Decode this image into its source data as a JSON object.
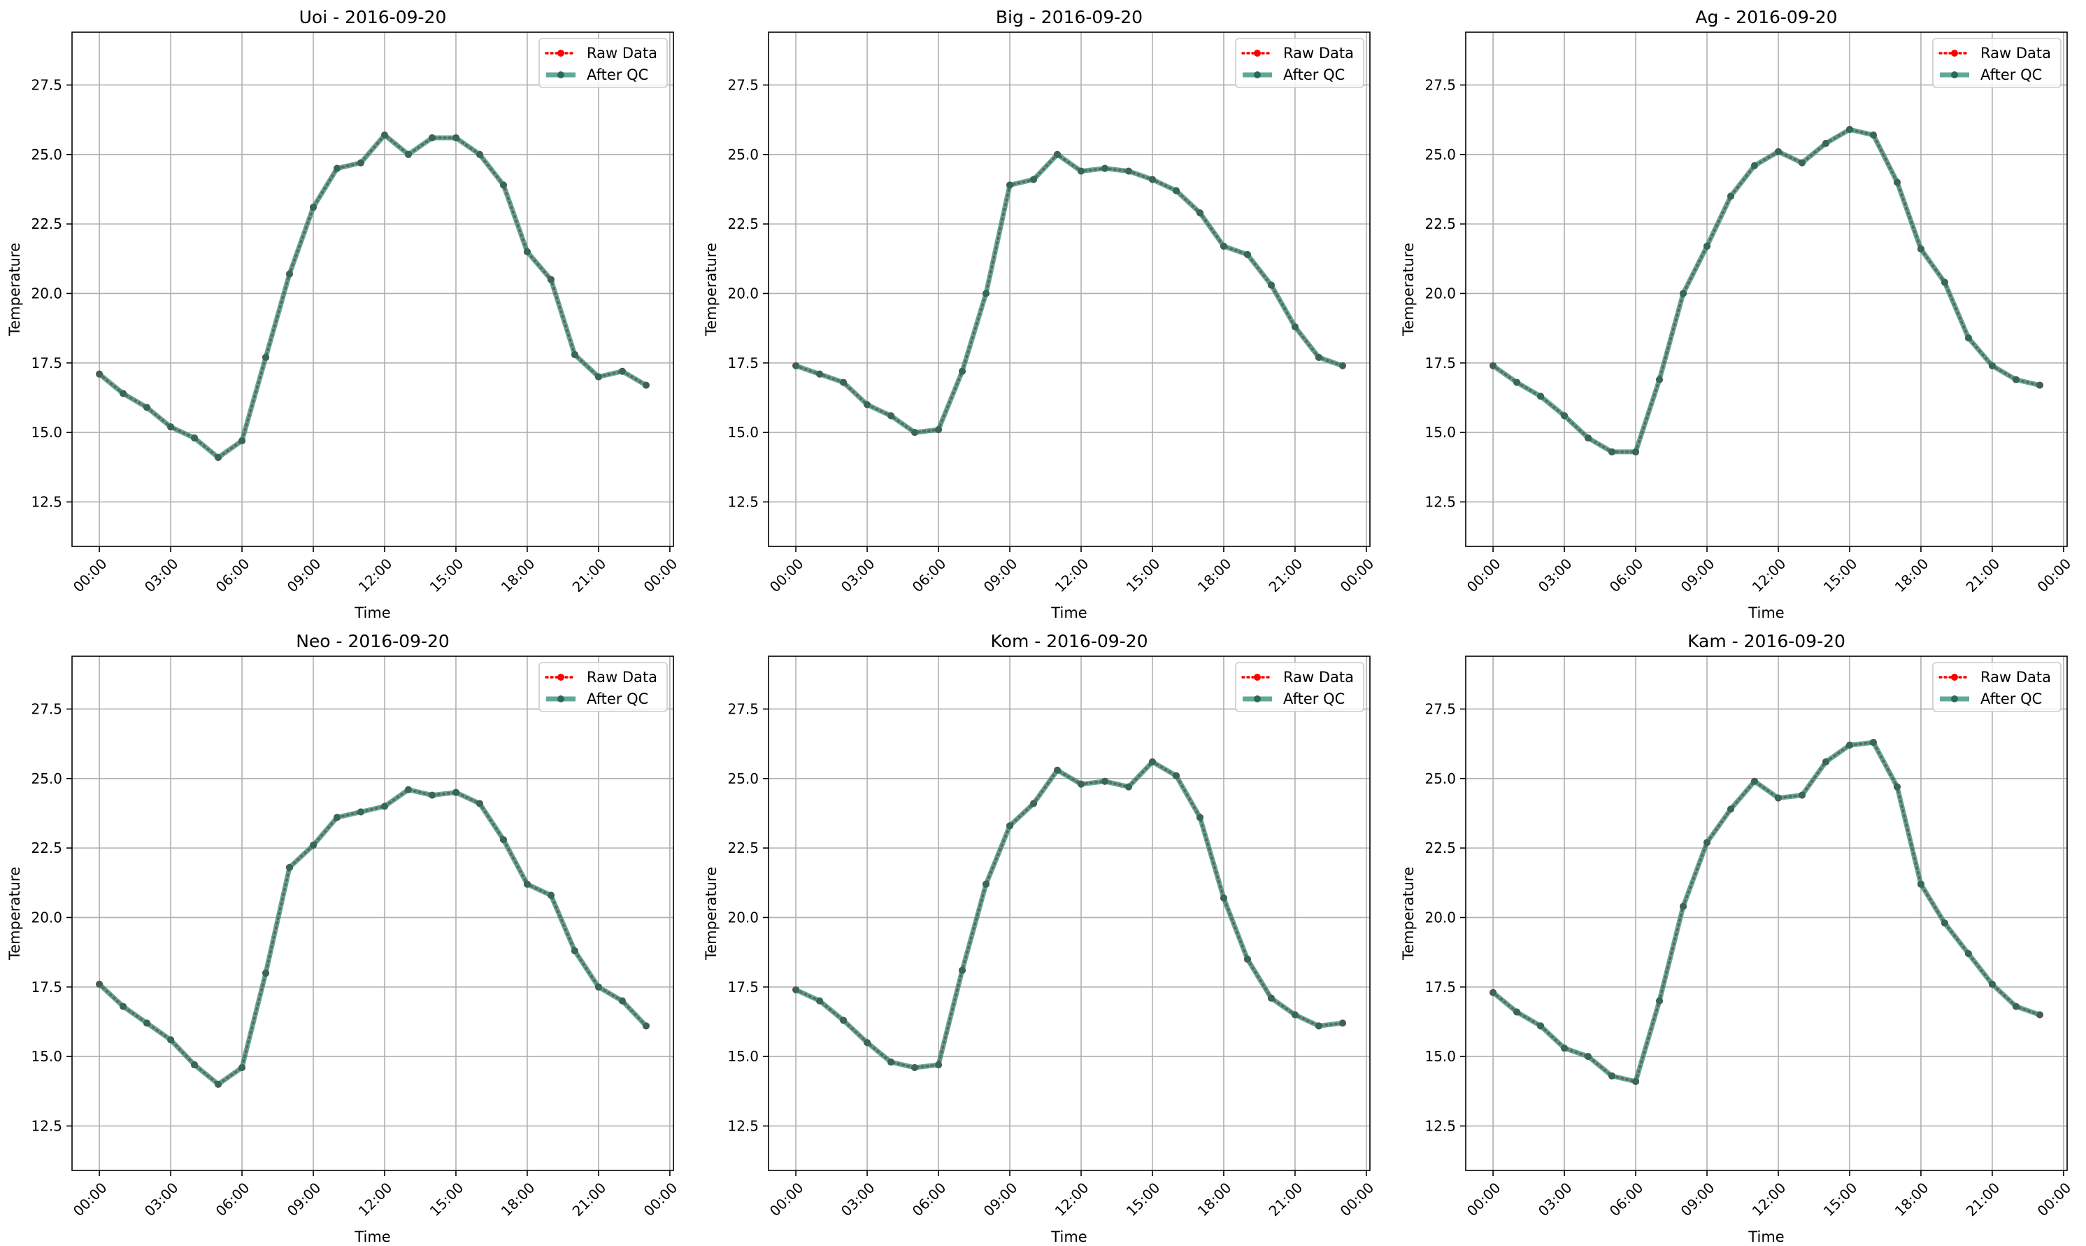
{
  "chart_data": [
    {
      "type": "line",
      "title": "Uoi - 2016-09-20",
      "xlabel": "Time",
      "ylabel": "Temperature",
      "xlim": [
        -1.15,
        24.15
      ],
      "ylim": [
        10.9,
        29.4
      ],
      "x_ticks": [
        0,
        3,
        6,
        9,
        12,
        15,
        18,
        21,
        24
      ],
      "x_tick_labels": [
        "00:00",
        "03:00",
        "06:00",
        "09:00",
        "12:00",
        "15:00",
        "18:00",
        "21:00",
        "00:00"
      ],
      "y_ticks": [
        12.5,
        15.0,
        17.5,
        20.0,
        22.5,
        25.0,
        27.5
      ],
      "y_tick_labels": [
        "12.5",
        "15.0",
        "17.5",
        "20.0",
        "22.5",
        "25.0",
        "27.5"
      ],
      "grid": true,
      "legend_position": "top-right",
      "x": [
        0,
        1,
        2,
        3,
        4,
        5,
        6,
        7,
        8,
        9,
        10,
        11,
        12,
        13,
        14,
        15,
        16,
        17,
        18,
        19,
        20,
        21,
        22,
        23
      ],
      "series": [
        {
          "name": "Raw Data",
          "color": "#ff0000",
          "style": "dotted",
          "values": [
            17.1,
            16.4,
            15.9,
            15.2,
            14.8,
            14.1,
            14.7,
            17.7,
            20.7,
            23.1,
            24.5,
            24.7,
            25.7,
            25.0,
            25.6,
            25.6,
            25.0,
            23.9,
            21.5,
            20.5,
            17.8,
            17.0,
            17.2,
            16.7
          ]
        },
        {
          "name": "After QC",
          "color": "#2e8b74",
          "style": "solid",
          "values": [
            17.1,
            16.4,
            15.9,
            15.2,
            14.8,
            14.1,
            14.7,
            17.7,
            20.7,
            23.1,
            24.5,
            24.7,
            25.7,
            25.0,
            25.6,
            25.6,
            25.0,
            23.9,
            21.5,
            20.5,
            17.8,
            17.0,
            17.2,
            16.7
          ]
        }
      ]
    },
    {
      "type": "line",
      "title": "Big - 2016-09-20",
      "xlabel": "Time",
      "ylabel": "Temperature",
      "xlim": [
        -1.15,
        24.15
      ],
      "ylim": [
        10.9,
        29.4
      ],
      "x_ticks": [
        0,
        3,
        6,
        9,
        12,
        15,
        18,
        21,
        24
      ],
      "x_tick_labels": [
        "00:00",
        "03:00",
        "06:00",
        "09:00",
        "12:00",
        "15:00",
        "18:00",
        "21:00",
        "00:00"
      ],
      "y_ticks": [
        12.5,
        15.0,
        17.5,
        20.0,
        22.5,
        25.0,
        27.5
      ],
      "y_tick_labels": [
        "12.5",
        "15.0",
        "17.5",
        "20.0",
        "22.5",
        "25.0",
        "27.5"
      ],
      "grid": true,
      "legend_position": "top-right",
      "x": [
        0,
        1,
        2,
        3,
        4,
        5,
        6,
        7,
        8,
        9,
        10,
        11,
        12,
        13,
        14,
        15,
        16,
        17,
        18,
        19,
        20,
        21,
        22,
        23
      ],
      "series": [
        {
          "name": "Raw Data",
          "color": "#ff0000",
          "style": "dotted",
          "values": [
            17.4,
            17.1,
            16.8,
            16.0,
            15.6,
            15.0,
            15.1,
            17.2,
            20.0,
            23.9,
            24.1,
            25.0,
            24.4,
            24.5,
            24.4,
            24.1,
            23.7,
            22.9,
            21.7,
            21.4,
            20.3,
            18.8,
            17.7,
            17.4
          ]
        },
        {
          "name": "After QC",
          "color": "#2e8b74",
          "style": "solid",
          "values": [
            17.4,
            17.1,
            16.8,
            16.0,
            15.6,
            15.0,
            15.1,
            17.2,
            20.0,
            23.9,
            24.1,
            25.0,
            24.4,
            24.5,
            24.4,
            24.1,
            23.7,
            22.9,
            21.7,
            21.4,
            20.3,
            18.8,
            17.7,
            17.4
          ]
        }
      ]
    },
    {
      "type": "line",
      "title": "Ag - 2016-09-20",
      "xlabel": "Time",
      "ylabel": "Temperature",
      "xlim": [
        -1.15,
        24.15
      ],
      "ylim": [
        10.9,
        29.4
      ],
      "x_ticks": [
        0,
        3,
        6,
        9,
        12,
        15,
        18,
        21,
        24
      ],
      "x_tick_labels": [
        "00:00",
        "03:00",
        "06:00",
        "09:00",
        "12:00",
        "15:00",
        "18:00",
        "21:00",
        "00:00"
      ],
      "y_ticks": [
        12.5,
        15.0,
        17.5,
        20.0,
        22.5,
        25.0,
        27.5
      ],
      "y_tick_labels": [
        "12.5",
        "15.0",
        "17.5",
        "20.0",
        "22.5",
        "25.0",
        "27.5"
      ],
      "grid": true,
      "legend_position": "top-right",
      "x": [
        0,
        1,
        2,
        3,
        4,
        5,
        6,
        7,
        8,
        9,
        10,
        11,
        12,
        13,
        14,
        15,
        16,
        17,
        18,
        19,
        20,
        21,
        22,
        23
      ],
      "series": [
        {
          "name": "Raw Data",
          "color": "#ff0000",
          "style": "dotted",
          "values": [
            17.4,
            16.8,
            16.3,
            15.6,
            14.8,
            14.3,
            14.3,
            16.9,
            20.0,
            21.7,
            23.5,
            24.6,
            25.1,
            24.7,
            25.4,
            25.9,
            25.7,
            24.0,
            21.6,
            20.4,
            18.4,
            17.4,
            16.9,
            16.7
          ]
        },
        {
          "name": "After QC",
          "color": "#2e8b74",
          "style": "solid",
          "values": [
            17.4,
            16.8,
            16.3,
            15.6,
            14.8,
            14.3,
            14.3,
            16.9,
            20.0,
            21.7,
            23.5,
            24.6,
            25.1,
            24.7,
            25.4,
            25.9,
            25.7,
            24.0,
            21.6,
            20.4,
            18.4,
            17.4,
            16.9,
            16.7
          ]
        }
      ]
    },
    {
      "type": "line",
      "title": "Neo - 2016-09-20",
      "xlabel": "Time",
      "ylabel": "Temperature",
      "xlim": [
        -1.15,
        24.15
      ],
      "ylim": [
        10.9,
        29.4
      ],
      "x_ticks": [
        0,
        3,
        6,
        9,
        12,
        15,
        18,
        21,
        24
      ],
      "x_tick_labels": [
        "00:00",
        "03:00",
        "06:00",
        "09:00",
        "12:00",
        "15:00",
        "18:00",
        "21:00",
        "00:00"
      ],
      "y_ticks": [
        12.5,
        15.0,
        17.5,
        20.0,
        22.5,
        25.0,
        27.5
      ],
      "y_tick_labels": [
        "12.5",
        "15.0",
        "17.5",
        "20.0",
        "22.5",
        "25.0",
        "27.5"
      ],
      "grid": true,
      "legend_position": "top-right",
      "x": [
        0,
        1,
        2,
        3,
        4,
        5,
        6,
        7,
        8,
        9,
        10,
        11,
        12,
        13,
        14,
        15,
        16,
        17,
        18,
        19,
        20,
        21,
        22,
        23
      ],
      "series": [
        {
          "name": "Raw Data",
          "color": "#ff0000",
          "style": "dotted",
          "values": [
            17.6,
            16.8,
            16.2,
            15.6,
            14.7,
            14.0,
            14.6,
            18.0,
            21.8,
            22.6,
            23.6,
            23.8,
            24.0,
            24.6,
            24.4,
            24.5,
            24.1,
            22.8,
            21.2,
            20.8,
            18.8,
            17.5,
            17.0,
            16.1
          ]
        },
        {
          "name": "After QC",
          "color": "#2e8b74",
          "style": "solid",
          "values": [
            17.6,
            16.8,
            16.2,
            15.6,
            14.7,
            14.0,
            14.6,
            18.0,
            21.8,
            22.6,
            23.6,
            23.8,
            24.0,
            24.6,
            24.4,
            24.5,
            24.1,
            22.8,
            21.2,
            20.8,
            18.8,
            17.5,
            17.0,
            16.1
          ]
        }
      ]
    },
    {
      "type": "line",
      "title": "Kom - 2016-09-20",
      "xlabel": "Time",
      "ylabel": "Temperature",
      "xlim": [
        -1.15,
        24.15
      ],
      "ylim": [
        10.9,
        29.4
      ],
      "x_ticks": [
        0,
        3,
        6,
        9,
        12,
        15,
        18,
        21,
        24
      ],
      "x_tick_labels": [
        "00:00",
        "03:00",
        "06:00",
        "09:00",
        "12:00",
        "15:00",
        "18:00",
        "21:00",
        "00:00"
      ],
      "y_ticks": [
        12.5,
        15.0,
        17.5,
        20.0,
        22.5,
        25.0,
        27.5
      ],
      "y_tick_labels": [
        "12.5",
        "15.0",
        "17.5",
        "20.0",
        "22.5",
        "25.0",
        "27.5"
      ],
      "grid": true,
      "legend_position": "top-right",
      "x": [
        0,
        1,
        2,
        3,
        4,
        5,
        6,
        7,
        8,
        9,
        10,
        11,
        12,
        13,
        14,
        15,
        16,
        17,
        18,
        19,
        20,
        21,
        22,
        23
      ],
      "series": [
        {
          "name": "Raw Data",
          "color": "#ff0000",
          "style": "dotted",
          "values": [
            17.4,
            17.0,
            16.3,
            15.5,
            14.8,
            14.6,
            14.7,
            18.1,
            21.2,
            23.3,
            24.1,
            25.3,
            24.8,
            24.9,
            24.7,
            25.6,
            25.1,
            23.6,
            20.7,
            18.5,
            17.1,
            16.5,
            16.1,
            16.2
          ]
        },
        {
          "name": "After QC",
          "color": "#2e8b74",
          "style": "solid",
          "values": [
            17.4,
            17.0,
            16.3,
            15.5,
            14.8,
            14.6,
            14.7,
            18.1,
            21.2,
            23.3,
            24.1,
            25.3,
            24.8,
            24.9,
            24.7,
            25.6,
            25.1,
            23.6,
            20.7,
            18.5,
            17.1,
            16.5,
            16.1,
            16.2
          ]
        }
      ]
    },
    {
      "type": "line",
      "title": "Kam - 2016-09-20",
      "xlabel": "Time",
      "ylabel": "Temperature",
      "xlim": [
        -1.15,
        24.15
      ],
      "ylim": [
        10.9,
        29.4
      ],
      "x_ticks": [
        0,
        3,
        6,
        9,
        12,
        15,
        18,
        21,
        24
      ],
      "x_tick_labels": [
        "00:00",
        "03:00",
        "06:00",
        "09:00",
        "12:00",
        "15:00",
        "18:00",
        "21:00",
        "00:00"
      ],
      "y_ticks": [
        12.5,
        15.0,
        17.5,
        20.0,
        22.5,
        25.0,
        27.5
      ],
      "y_tick_labels": [
        "12.5",
        "15.0",
        "17.5",
        "20.0",
        "22.5",
        "25.0",
        "27.5"
      ],
      "grid": true,
      "legend_position": "top-right",
      "x": [
        0,
        1,
        2,
        3,
        4,
        5,
        6,
        7,
        8,
        9,
        10,
        11,
        12,
        13,
        14,
        15,
        16,
        17,
        18,
        19,
        20,
        21,
        22,
        23
      ],
      "series": [
        {
          "name": "Raw Data",
          "color": "#ff0000",
          "style": "dotted",
          "values": [
            17.3,
            16.6,
            16.1,
            15.3,
            15.0,
            14.3,
            14.1,
            17.0,
            20.4,
            22.7,
            23.9,
            24.9,
            24.3,
            24.4,
            25.6,
            26.2,
            26.3,
            24.7,
            21.2,
            19.8,
            18.7,
            17.6,
            16.8,
            16.5
          ]
        },
        {
          "name": "After QC",
          "color": "#2e8b74",
          "style": "solid",
          "values": [
            17.3,
            16.6,
            16.1,
            15.3,
            15.0,
            14.3,
            14.1,
            17.0,
            20.4,
            22.7,
            23.9,
            24.9,
            24.3,
            24.4,
            25.6,
            26.2,
            26.3,
            24.7,
            21.2,
            19.8,
            18.7,
            17.6,
            16.8,
            16.5
          ]
        }
      ]
    }
  ]
}
